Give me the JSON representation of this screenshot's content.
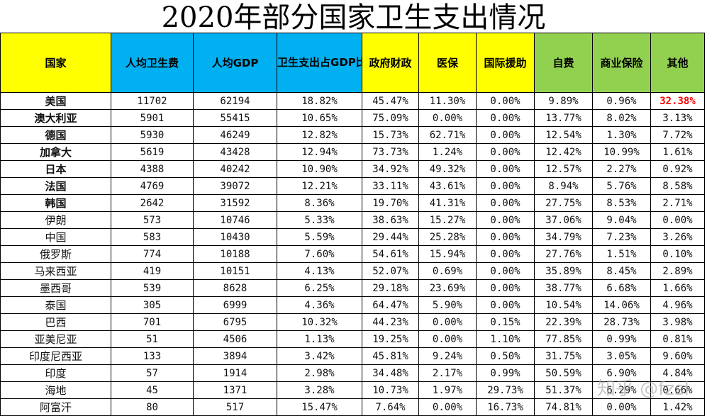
{
  "title": "2020年部分国家卫生支出情况",
  "headers": [
    "国家",
    "人均卫生费",
    "人均GDP",
    "卫生支出占GDP比",
    "政府财政",
    "医保",
    "国际援助",
    "自费",
    "商业保险",
    "其他"
  ],
  "header_colors": [
    "#ffff00",
    "#00b0f0",
    "#00b0f0",
    "#00b0f0",
    "#ffff00",
    "#ffff00",
    "#ffff00",
    "#92d050",
    "#92d050",
    "#92d050"
  ],
  "rows": [
    {
      "country": "美国",
      "bold": true,
      "vals": [
        "11702",
        "62194",
        "18.82%",
        "45.47%",
        "11.30%",
        "0.00%",
        "9.89%",
        "0.96%",
        "32.38%"
      ]
    },
    {
      "country": "澳大利亚",
      "bold": true,
      "vals": [
        "5901",
        "55415",
        "10.65%",
        "75.09%",
        "0.00%",
        "0.00%",
        "13.77%",
        "8.02%",
        "3.13%"
      ]
    },
    {
      "country": "德国",
      "bold": true,
      "vals": [
        "5930",
        "46249",
        "12.82%",
        "15.73%",
        "62.71%",
        "0.00%",
        "12.54%",
        "1.30%",
        "7.72%"
      ]
    },
    {
      "country": "加拿大",
      "bold": true,
      "vals": [
        "5619",
        "43428",
        "12.94%",
        "73.73%",
        "1.24%",
        "0.00%",
        "12.42%",
        "10.99%",
        "1.61%"
      ]
    },
    {
      "country": "日本",
      "bold": true,
      "vals": [
        "4388",
        "40242",
        "10.90%",
        "34.92%",
        "49.32%",
        "0.00%",
        "12.57%",
        "2.27%",
        "0.92%"
      ]
    },
    {
      "country": "法国",
      "bold": true,
      "vals": [
        "4769",
        "39072",
        "12.21%",
        "33.11%",
        "43.61%",
        "0.00%",
        "8.94%",
        "5.76%",
        "8.58%"
      ]
    },
    {
      "country": "韩国",
      "bold": true,
      "vals": [
        "2642",
        "31592",
        "8.36%",
        "19.70%",
        "41.31%",
        "0.00%",
        "27.75%",
        "8.53%",
        "2.71%"
      ]
    },
    {
      "country": "伊朗",
      "bold": false,
      "vals": [
        "573",
        "10746",
        "5.33%",
        "38.63%",
        "15.27%",
        "0.00%",
        "37.06%",
        "9.04%",
        "0.00%"
      ]
    },
    {
      "country": "中国",
      "bold": false,
      "vals": [
        "583",
        "10430",
        "5.59%",
        "29.44%",
        "25.28%",
        "0.00%",
        "34.79%",
        "7.23%",
        "3.26%"
      ]
    },
    {
      "country": "俄罗斯",
      "bold": false,
      "vals": [
        "774",
        "10188",
        "7.60%",
        "54.61%",
        "15.94%",
        "0.00%",
        "27.76%",
        "1.51%",
        "0.10%"
      ]
    },
    {
      "country": "马来西亚",
      "bold": false,
      "vals": [
        "419",
        "10151",
        "4.13%",
        "52.07%",
        "0.69%",
        "0.00%",
        "35.89%",
        "8.45%",
        "2.89%"
      ]
    },
    {
      "country": "墨西哥",
      "bold": false,
      "vals": [
        "539",
        "8628",
        "6.25%",
        "29.18%",
        "23.69%",
        "0.00%",
        "38.77%",
        "6.68%",
        "1.66%"
      ]
    },
    {
      "country": "泰国",
      "bold": false,
      "vals": [
        "305",
        "6999",
        "4.36%",
        "64.47%",
        "5.90%",
        "0.00%",
        "10.54%",
        "14.06%",
        "4.96%"
      ]
    },
    {
      "country": "巴西",
      "bold": false,
      "vals": [
        "701",
        "6795",
        "10.32%",
        "44.23%",
        "0.00%",
        "0.15%",
        "22.39%",
        "28.73%",
        "3.98%"
      ]
    },
    {
      "country": "亚美尼亚",
      "bold": false,
      "vals": [
        "51",
        "4506",
        "1.13%",
        "19.25%",
        "0.00%",
        "1.10%",
        "77.85%",
        "0.99%",
        "0.81%"
      ]
    },
    {
      "country": "印度尼西亚",
      "bold": false,
      "vals": [
        "133",
        "3894",
        "3.42%",
        "45.81%",
        "9.24%",
        "0.50%",
        "31.75%",
        "3.05%",
        "9.60%"
      ]
    },
    {
      "country": "印度",
      "bold": false,
      "vals": [
        "57",
        "1914",
        "2.98%",
        "34.48%",
        "2.17%",
        "0.99%",
        "50.59%",
        "6.90%",
        "4.84%"
      ]
    },
    {
      "country": "海地",
      "bold": false,
      "vals": [
        "45",
        "1371",
        "3.28%",
        "10.73%",
        "1.97%",
        "29.73%",
        "51.37%",
        "6.29%",
        "0.66%"
      ]
    },
    {
      "country": "阿富汗",
      "bold": false,
      "vals": [
        "80",
        "517",
        "15.47%",
        "7.64%",
        "0.00%",
        "16.73%",
        "74.81%",
        "0.00%",
        "1.42%"
      ]
    }
  ],
  "highlight": {
    "row": 0,
    "col": 9,
    "color": "#ff0000"
  },
  "watermark": "知乎 @fzsl"
}
